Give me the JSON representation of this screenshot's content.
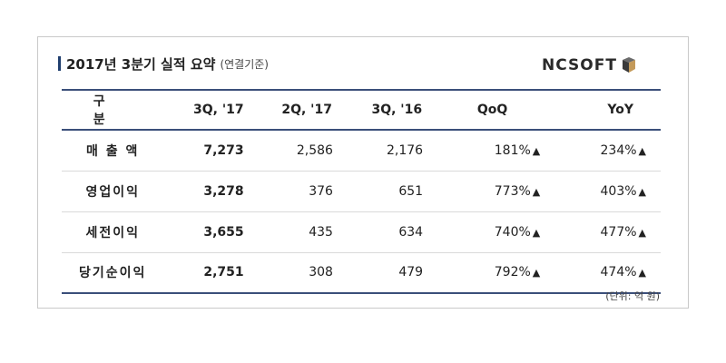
{
  "header": {
    "title": "2017년 3분기 실적 요약",
    "subtitle": "(연결기준)",
    "logo_text": "NCSOFT"
  },
  "table": {
    "columns": [
      "구 분",
      "3Q, '17",
      "2Q, '17",
      "3Q, '16",
      "QoQ",
      "YoY"
    ],
    "rows": [
      {
        "label": "매 출 액",
        "cur": "7,273",
        "prev_q": "2,586",
        "prev_y": "2,176",
        "qoq": "181%",
        "yoy": "234%"
      },
      {
        "label": "영업이익",
        "cur": "3,278",
        "prev_q": "376",
        "prev_y": "651",
        "qoq": "773%",
        "yoy": "403%"
      },
      {
        "label": "세전이익",
        "cur": "3,655",
        "prev_q": "435",
        "prev_y": "634",
        "qoq": "740%",
        "yoy": "477%"
      },
      {
        "label": "당기순이익",
        "cur": "2,751",
        "prev_q": "308",
        "prev_y": "479",
        "qoq": "792%",
        "yoy": "474%"
      }
    ],
    "up_marker": "▲"
  },
  "footer": {
    "unit_note": "(단위: 억 원)"
  },
  "colors": {
    "rule": "#3b4f7a",
    "title_mark": "#1f3e6e",
    "logo_mark": "#c49a5a"
  }
}
